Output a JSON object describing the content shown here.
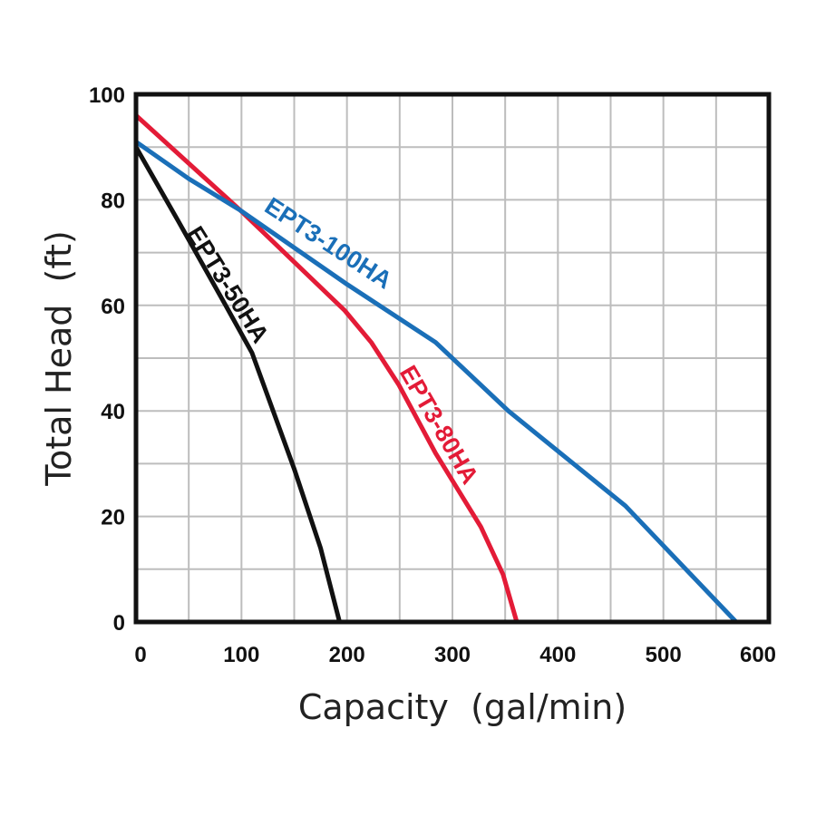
{
  "chart_data": {
    "type": "line",
    "xlabel": "Capacity  (gal/min)",
    "ylabel": "Total Head  (ft)",
    "xlim": [
      0,
      600
    ],
    "ylim": [
      0,
      100
    ],
    "xticks": [
      "0",
      "100",
      "200",
      "300",
      "400",
      "500",
      "600"
    ],
    "yticks": [
      "0",
      "20",
      "40",
      "60",
      "80",
      "100"
    ],
    "grid": true,
    "series": [
      {
        "name": "EPT3-50HA",
        "color": "#111111",
        "points": [
          [
            0,
            90
          ],
          [
            40,
            76
          ],
          [
            85,
            60
          ],
          [
            110,
            51
          ],
          [
            130,
            40
          ],
          [
            150,
            29
          ],
          [
            175,
            14
          ],
          [
            193,
            0
          ]
        ]
      },
      {
        "name": "EPT3-80HA",
        "color": "#e31b37",
        "points": [
          [
            0,
            96
          ],
          [
            99,
            78
          ],
          [
            198,
            59
          ],
          [
            223,
            53
          ],
          [
            249,
            45
          ],
          [
            284,
            32
          ],
          [
            327,
            18
          ],
          [
            348,
            9
          ],
          [
            361,
            0
          ]
        ]
      },
      {
        "name": "EPT3-100HA",
        "color": "#1a6fb8",
        "points": [
          [
            0,
            91
          ],
          [
            50,
            84
          ],
          [
            99,
            78
          ],
          [
            200,
            64
          ],
          [
            284,
            53
          ],
          [
            353,
            40
          ],
          [
            464,
            22
          ],
          [
            569,
            0
          ]
        ]
      }
    ]
  }
}
